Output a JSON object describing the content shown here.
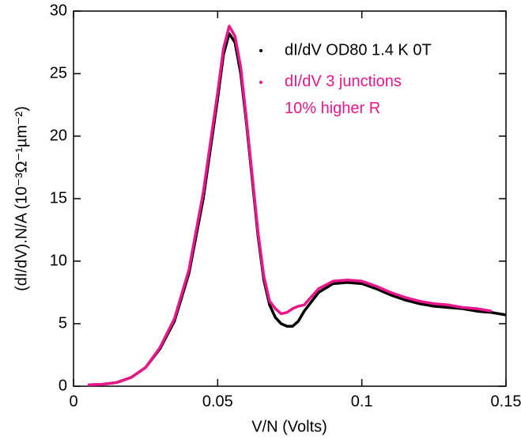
{
  "chart_data": {
    "type": "line",
    "xlabel": "V/N  (Volts)",
    "ylabel": "(dI/dV).N/A (10⁻³Ω⁻¹µm⁻²)",
    "x": [
      0.005,
      0.01,
      0.015,
      0.02,
      0.025,
      0.03,
      0.035,
      0.04,
      0.045,
      0.05,
      0.052,
      0.054,
      0.056,
      0.058,
      0.06,
      0.062,
      0.064,
      0.066,
      0.068,
      0.07,
      0.072,
      0.074,
      0.076,
      0.078,
      0.08,
      0.085,
      0.09,
      0.095,
      0.1,
      0.105,
      0.11,
      0.115,
      0.12,
      0.125,
      0.13,
      0.135,
      0.14,
      0.145,
      0.15
    ],
    "series": [
      {
        "name": "dI/dV OD80 1.4 K 0T",
        "color": "#000000",
        "values": [
          0.1,
          0.15,
          0.3,
          0.7,
          1.5,
          3,
          5.2,
          9,
          15,
          23,
          26.5,
          28.2,
          27.5,
          25,
          21,
          16.5,
          12,
          8.5,
          6.5,
          5.5,
          5,
          4.8,
          4.8,
          5.2,
          6,
          7.5,
          8.2,
          8.3,
          8.2,
          7.8,
          7.3,
          6.9,
          6.6,
          6.4,
          6.3,
          6.2,
          6.0,
          5.9,
          5.7
        ]
      },
      {
        "name": "dI/dV 3 junctions\n10% higher R",
        "color": "#e8178a",
        "values": [
          0.1,
          0.15,
          0.3,
          0.7,
          1.5,
          3.1,
          5.4,
          9.3,
          15.5,
          23.5,
          27,
          28.8,
          28,
          25.5,
          21.3,
          16.8,
          12.3,
          8.8,
          6.8,
          6.2,
          5.8,
          5.9,
          6.2,
          6.4,
          6.5,
          7.8,
          8.4,
          8.5,
          8.4,
          8.0,
          7.5,
          7.1,
          6.8,
          6.6,
          6.5,
          6.3,
          6.2,
          6.0,
          null
        ]
      }
    ],
    "xlim": [
      0,
      0.15
    ],
    "xticks": [
      0,
      0.05,
      0.1,
      0.15
    ],
    "ylim": [
      0,
      30
    ],
    "yticks": [
      0,
      5,
      10,
      15,
      20,
      25,
      30
    ]
  }
}
